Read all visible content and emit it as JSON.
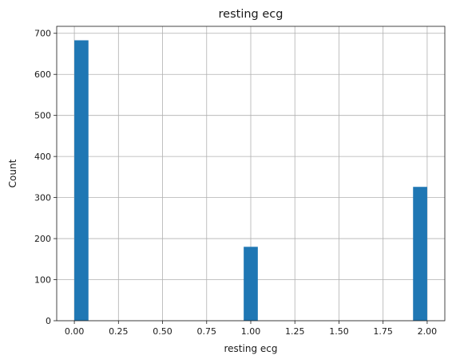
{
  "chart_data": {
    "type": "bar",
    "title": "resting ecg",
    "xlabel": "resting ecg",
    "ylabel": "Count",
    "bars": [
      {
        "x_start": 0.0,
        "x_end": 0.08,
        "value": 683
      },
      {
        "x_start": 0.96,
        "x_end": 1.04,
        "value": 180
      },
      {
        "x_start": 1.92,
        "x_end": 2.0,
        "value": 326
      }
    ],
    "xlim": [
      -0.1,
      2.1
    ],
    "ylim": [
      0,
      717
    ],
    "x_ticks": [
      "0.00",
      "0.25",
      "0.50",
      "0.75",
      "1.00",
      "1.25",
      "1.50",
      "1.75",
      "2.00"
    ],
    "y_ticks": [
      "0",
      "100",
      "200",
      "300",
      "400",
      "500",
      "600",
      "700"
    ],
    "grid": true,
    "bar_color": "#1f77b4"
  }
}
